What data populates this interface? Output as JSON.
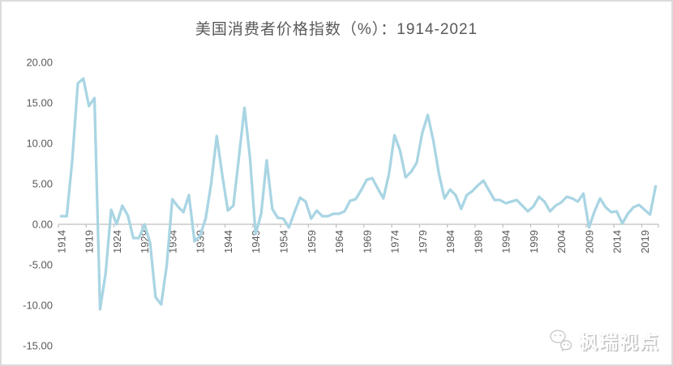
{
  "page": {
    "background": "#ffffff",
    "border_color": "#dcdcdc"
  },
  "watermark": {
    "text": "枫瑞视点",
    "icon": "wechat-logo"
  },
  "chart_data": {
    "type": "line",
    "title": "美国消费者价格指数（%）：1914-2021",
    "xlabel": "",
    "ylabel": "",
    "x_start": 1914,
    "x_end": 2021,
    "values": [
      1.0,
      1.0,
      7.9,
      17.4,
      18.0,
      14.6,
      15.6,
      -10.5,
      -6.1,
      1.8,
      0.0,
      2.3,
      1.1,
      -1.7,
      -1.7,
      0.0,
      -2.3,
      -9.0,
      -9.9,
      -5.1,
      3.1,
      2.2,
      1.5,
      3.6,
      -2.1,
      -1.4,
      0.7,
      5.0,
      10.9,
      6.1,
      1.7,
      2.3,
      8.3,
      14.4,
      8.1,
      -1.2,
      1.3,
      7.9,
      1.9,
      0.8,
      0.7,
      -0.4,
      1.5,
      3.3,
      2.8,
      0.7,
      1.7,
      1.0,
      1.0,
      1.3,
      1.3,
      1.6,
      2.9,
      3.1,
      4.2,
      5.5,
      5.7,
      4.4,
      3.2,
      6.2,
      11.0,
      9.1,
      5.8,
      6.5,
      7.6,
      11.3,
      13.5,
      10.3,
      6.2,
      3.2,
      4.3,
      3.6,
      1.9,
      3.6,
      4.1,
      4.8,
      5.4,
      4.2,
      3.0,
      3.0,
      2.6,
      2.8,
      3.0,
      2.3,
      1.6,
      2.2,
      3.4,
      2.8,
      1.6,
      2.3,
      2.7,
      3.4,
      3.2,
      2.8,
      3.8,
      -0.4,
      1.6,
      3.2,
      2.1,
      1.5,
      1.6,
      0.1,
      1.3,
      2.1,
      2.4,
      1.8,
      1.2,
      4.7
    ],
    "x_ticks": [
      1914,
      1919,
      1924,
      1929,
      1934,
      1939,
      1944,
      1949,
      1954,
      1959,
      1964,
      1969,
      1974,
      1979,
      1984,
      1989,
      1994,
      1999,
      2004,
      2009,
      2014,
      2019
    ],
    "y_ticks": [
      20,
      15,
      10,
      5,
      0,
      -5,
      -10,
      -15
    ],
    "y_tick_labels": [
      "20.00",
      "15.00",
      "10.00",
      "5.00",
      "0.00",
      "-5.00",
      "-10.00",
      "-15.00"
    ],
    "ylim": [
      -15,
      20
    ],
    "grid": false,
    "legend": "none",
    "line_color": "#a9d5e3",
    "axis_color": "#bfbfbf",
    "label_color": "#595959",
    "title_color": "#595959"
  }
}
